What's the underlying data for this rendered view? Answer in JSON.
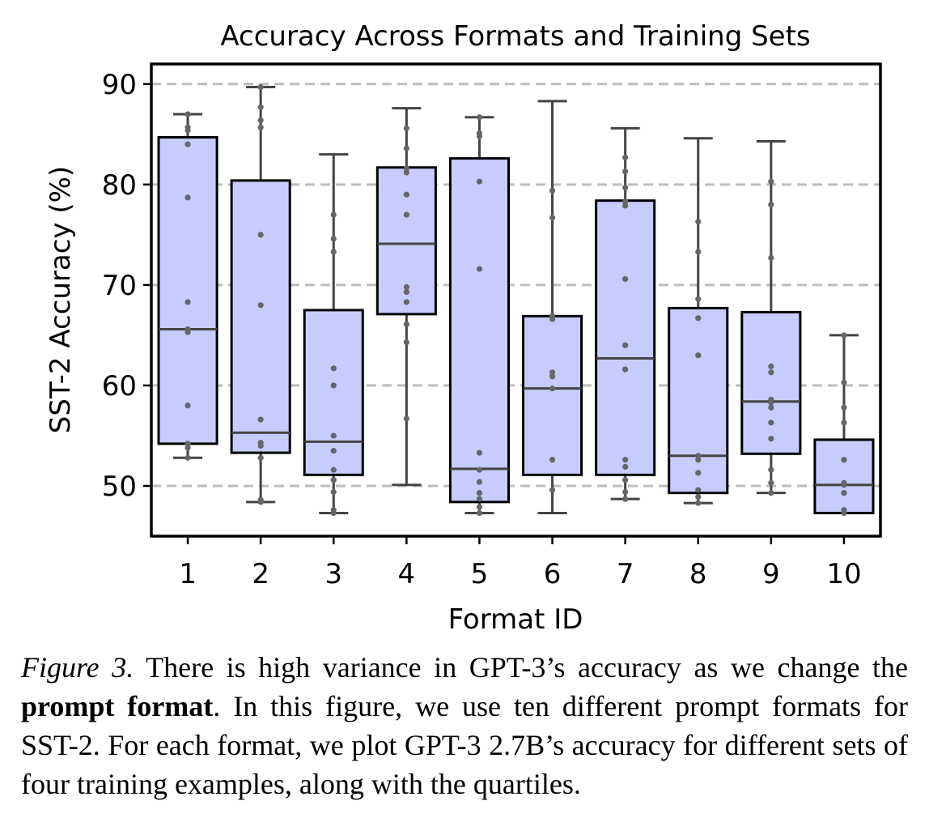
{
  "chart_data": {
    "type": "box",
    "title": "Accuracy Across Formats and Training Sets",
    "xlabel": "Format ID",
    "ylabel": "SST-2 Accuracy (%)",
    "ylim": [
      45.0,
      92.0
    ],
    "yticks": [
      50,
      60,
      70,
      80,
      90
    ],
    "grid": "horizontal dashed",
    "box_color": "#c6cdfd",
    "edge_color": "#000000",
    "whisker_color": "#444444",
    "point_color": "#666666",
    "categories": [
      "1",
      "2",
      "3",
      "4",
      "5",
      "6",
      "7",
      "8",
      "9",
      "10"
    ],
    "boxes": [
      {
        "format": "1",
        "whisker_low": 52.8,
        "q1": 54.2,
        "median": 65.6,
        "q3": 84.7,
        "whisker_high": 87.0,
        "points": [
          52.8,
          53.8,
          54.2,
          58.0,
          65.3,
          65.6,
          68.3,
          78.7,
          84.0,
          85.4,
          85.7,
          87.0
        ]
      },
      {
        "format": "2",
        "whisker_low": 48.4,
        "q1": 53.3,
        "median": 55.3,
        "q3": 80.4,
        "whisker_high": 89.7,
        "points": [
          48.4,
          48.6,
          52.8,
          54.0,
          54.3,
          56.6,
          68.0,
          75.0,
          85.7,
          86.4,
          87.7,
          89.7
        ]
      },
      {
        "format": "3",
        "whisker_low": 47.3,
        "q1": 51.1,
        "median": 54.4,
        "q3": 67.5,
        "whisker_high": 83.0,
        "points": [
          47.3,
          47.6,
          49.4,
          50.6,
          51.6,
          53.5,
          55.0,
          60.0,
          61.7,
          73.3,
          74.6,
          77.0
        ]
      },
      {
        "format": "4",
        "whisker_low": 50.1,
        "q1": 67.1,
        "median": 74.1,
        "q3": 81.7,
        "whisker_high": 87.6,
        "points": [
          56.7,
          64.3,
          66.1,
          68.3,
          69.3,
          69.8,
          77.0,
          79.0,
          81.2,
          81.6,
          83.6,
          85.6
        ]
      },
      {
        "format": "5",
        "whisker_low": 47.3,
        "q1": 48.4,
        "median": 51.7,
        "q3": 82.6,
        "whisker_high": 86.7,
        "points": [
          47.3,
          47.9,
          48.7,
          49.3,
          50.4,
          51.6,
          53.3,
          71.6,
          80.3,
          84.8,
          85.1,
          86.7
        ]
      },
      {
        "format": "6",
        "whisker_low": 47.3,
        "q1": 51.1,
        "median": 59.7,
        "q3": 66.9,
        "whisker_high": 88.3,
        "points": [
          49.6,
          52.6,
          59.7,
          60.9,
          61.3,
          66.6,
          66.9,
          76.7,
          79.4
        ]
      },
      {
        "format": "7",
        "whisker_low": 48.7,
        "q1": 51.1,
        "median": 62.7,
        "q3": 78.4,
        "whisker_high": 85.6,
        "points": [
          48.7,
          49.4,
          50.6,
          51.9,
          52.6,
          61.6,
          64.0,
          70.6,
          77.9,
          78.3,
          79.7,
          81.3,
          82.7
        ]
      },
      {
        "format": "8",
        "whisker_low": 48.3,
        "q1": 49.3,
        "median": 53.0,
        "q3": 67.7,
        "whisker_high": 84.6,
        "points": [
          48.3,
          48.9,
          49.6,
          51.3,
          52.6,
          53.0,
          63.0,
          66.7,
          68.6,
          73.3,
          76.3
        ]
      },
      {
        "format": "9",
        "whisker_low": 49.3,
        "q1": 53.2,
        "median": 58.4,
        "q3": 67.3,
        "whisker_high": 84.3,
        "points": [
          49.3,
          50.3,
          51.6,
          54.7,
          56.3,
          57.8,
          58.3,
          58.6,
          61.3,
          61.9,
          72.7,
          78.0,
          80.3
        ]
      },
      {
        "format": "10",
        "whisker_low": 47.3,
        "q1": 47.3,
        "median": 50.1,
        "q3": 54.6,
        "whisker_high": 65.0,
        "points": [
          47.3,
          47.6,
          49.3,
          50.1,
          50.3,
          52.6,
          56.3,
          57.8,
          60.3,
          65.0
        ]
      }
    ]
  },
  "caption": {
    "label": "Figure 3.",
    "text_1": " There is high variance in GPT-3’s accuracy as we change the ",
    "bold": "prompt format",
    "text_2": ".  In this figure, we use ten different prompt formats for SST-2. For each format, we plot GPT-3 2.7B’s accuracy for different sets of four training examples, along with the quartiles."
  }
}
